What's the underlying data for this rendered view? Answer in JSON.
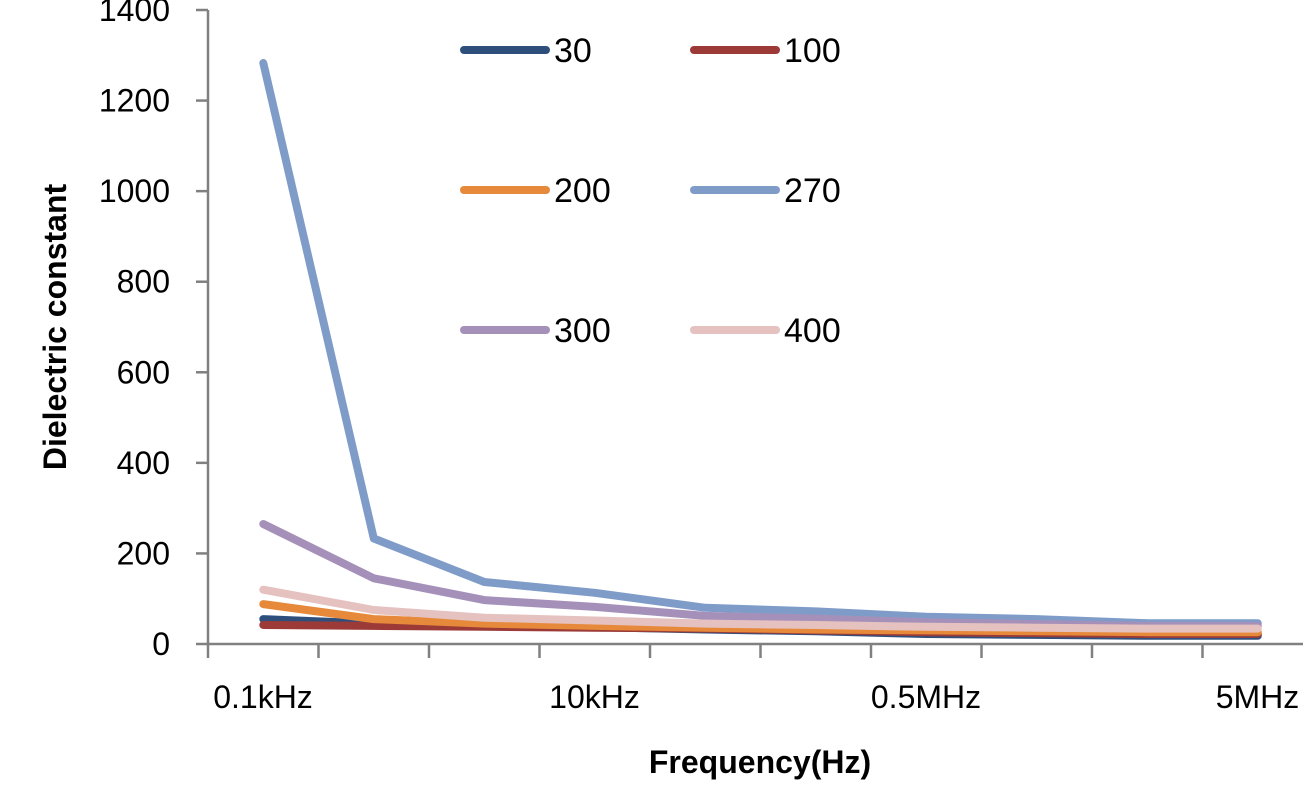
{
  "chart_data": {
    "type": "line",
    "title": "",
    "xlabel": "Frequency(Hz)",
    "ylabel": "Dielectric constant",
    "ylim": [
      0,
      1400
    ],
    "yticks": [
      0,
      200,
      400,
      600,
      800,
      1000,
      1200,
      1400
    ],
    "x_tick_labels": [
      "0.1kHz",
      "10kHz",
      "0.5MHz",
      "5MHz"
    ],
    "grid": false,
    "legend_position": "top-center",
    "categories": [
      "",
      "",
      "",
      "",
      "",
      "",
      "",
      "",
      "",
      ""
    ],
    "series": [
      {
        "name": "30",
        "color": "#2e4f7c",
        "values": [
          55,
          45,
          40,
          37,
          32,
          28,
          22,
          20,
          18,
          18
        ]
      },
      {
        "name": "100",
        "color": "#9b3a37",
        "values": [
          42,
          40,
          38,
          36,
          34,
          30,
          26,
          24,
          22,
          22
        ]
      },
      {
        "name": "200",
        "color": "#e6893a",
        "values": [
          88,
          55,
          45,
          40,
          36,
          32,
          30,
          28,
          26,
          26
        ]
      },
      {
        "name": "270",
        "color": "#7f9cc9",
        "values": [
          1283,
          233,
          137,
          113,
          80,
          72,
          60,
          55,
          46,
          46
        ]
      },
      {
        "name": "300",
        "color": "#a590ba",
        "values": [
          265,
          145,
          97,
          82,
          62,
          56,
          48,
          44,
          40,
          40
        ]
      },
      {
        "name": "400",
        "color": "#e5c1bf",
        "values": [
          120,
          75,
          58,
          52,
          45,
          42,
          38,
          36,
          34,
          34
        ]
      }
    ]
  }
}
